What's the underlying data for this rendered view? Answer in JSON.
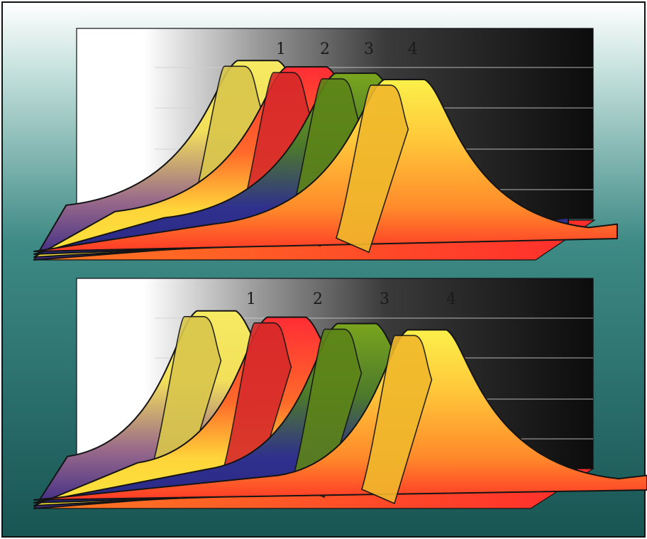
{
  "colors": {
    "frame": "#111111",
    "background_top": "#ffffff",
    "background_bottom": "#185553",
    "wall_light": "#ffffff",
    "wall_dark": "#0c0c0c",
    "floor": "#ff3f2a",
    "series_1": "#f2e35a",
    "series_2": "#f0332f",
    "series_3": "#6f9e1c",
    "series_4": "#f6d438",
    "shadow_band": "#3f2f8a"
  },
  "chart_data": [
    {
      "type": "area",
      "grid": true,
      "ylim": [
        0,
        5
      ],
      "legend": "none",
      "series": [
        {
          "name": "1",
          "values": [
            0.4,
            0.8,
            4.4,
            4.4,
            0.7,
            0.4
          ]
        },
        {
          "name": "2",
          "values": [
            0.4,
            0.8,
            4.4,
            4.4,
            0.7,
            0.4
          ]
        },
        {
          "name": "3",
          "values": [
            0.4,
            0.8,
            4.4,
            4.4,
            0.7,
            0.4
          ]
        },
        {
          "name": "4",
          "values": [
            0.4,
            0.8,
            4.4,
            4.4,
            0.7,
            0.4
          ]
        }
      ]
    },
    {
      "type": "area",
      "grid": true,
      "ylim": [
        0,
        5
      ],
      "legend": "none",
      "series": [
        {
          "name": "1",
          "values": [
            0.4,
            0.8,
            4.4,
            4.4,
            0.7,
            0.4
          ]
        },
        {
          "name": "2",
          "values": [
            0.4,
            0.8,
            4.4,
            4.4,
            0.7,
            0.4
          ]
        },
        {
          "name": "3",
          "values": [
            0.4,
            0.8,
            4.4,
            4.4,
            0.7,
            0.4
          ]
        },
        {
          "name": "4",
          "values": [
            0.4,
            0.8,
            4.4,
            4.4,
            0.7,
            0.4
          ]
        }
      ]
    }
  ]
}
